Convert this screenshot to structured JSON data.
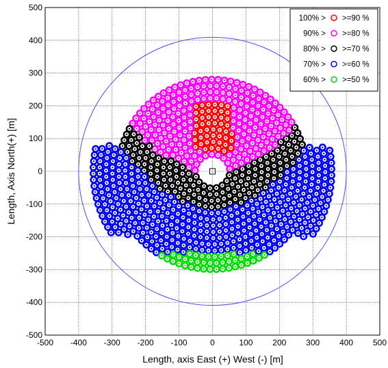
{
  "chart_data": {
    "type": "scatter",
    "title": "",
    "xlabel": "Length, axis East (+) West (-)  [m]",
    "ylabel": "Length, Axis North(+)  [m]",
    "xlim": [
      -500,
      500
    ],
    "ylim": [
      -500,
      500
    ],
    "xticks": [
      "-500",
      "-400",
      "-300",
      "-200",
      "-100",
      "0",
      "100",
      "200",
      "300",
      "400",
      "500"
    ],
    "yticks": [
      "-500",
      "-400",
      "-300",
      "-200",
      "-100",
      "0",
      "100",
      "200",
      "300",
      "400",
      "500"
    ],
    "grid": true,
    "legend_position": "top-right",
    "legend": [
      {
        "range": "100% >",
        "marker": "O",
        "threshold": ">=90 %",
        "color": "#ff0000"
      },
      {
        "range": "90% >",
        "marker": "O",
        "threshold": ">=80 %",
        "color": "#ff00ff"
      },
      {
        "range": "80% >",
        "marker": "O",
        "threshold": ">=70 %",
        "color": "#000000"
      },
      {
        "range": "70% >",
        "marker": "O",
        "threshold": ">=60 %",
        "color": "#0000ff"
      },
      {
        "range": "60% >",
        "marker": "O",
        "threshold": ">=50 %",
        "color": "#00dd00"
      }
    ],
    "field_boundary": {
      "inner_radius": 38,
      "outer_radius": 365,
      "north_cutoff_y": 365,
      "south_cutoff_y": -340,
      "ring_spacing": 19,
      "black_band_center_y": 95,
      "black_band_half_width": 55
    },
    "zones": {
      "red": {
        "x_range": [
          -60,
          60
        ],
        "y_range": [
          60,
          210
        ],
        "efficiency": "100% > >=90 %"
      },
      "green": {
        "y_range": [
          -340,
          -250
        ],
        "efficiency": "60% > >=50 %"
      }
    },
    "boundary_circle_radius": 400,
    "tower_position": [
      0,
      0
    ]
  }
}
